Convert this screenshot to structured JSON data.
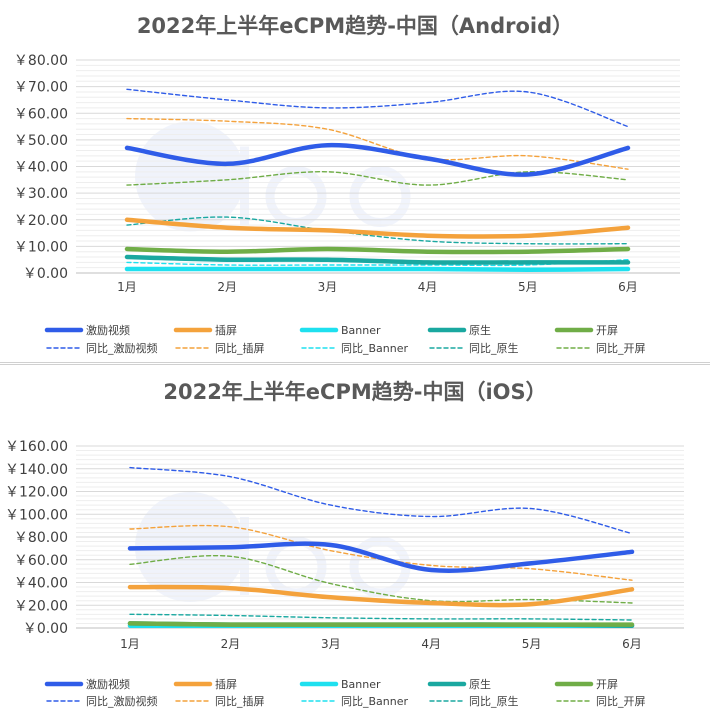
{
  "chart_data": [
    {
      "type": "line",
      "title": "2022年上半年eCPM趋势-中国（Android）",
      "categories": [
        "1月",
        "2月",
        "3月",
        "4月",
        "5月",
        "6月"
      ],
      "ylim": [
        0,
        80
      ],
      "yticks": [
        "￥0.00",
        "￥10.00",
        "￥20.00",
        "￥30.00",
        "￥40.00",
        "￥50.00",
        "￥60.00",
        "￥70.00",
        "￥80.00"
      ],
      "grid": true,
      "legend_position": "bottom",
      "series": [
        {
          "name": "激励视频",
          "color": "#2f5ce8",
          "style": "solid-thick",
          "values": [
            47,
            41,
            48,
            43,
            37,
            47
          ]
        },
        {
          "name": "插屏",
          "color": "#f4a23c",
          "style": "solid-thick",
          "values": [
            20,
            17,
            16,
            14,
            14,
            17
          ]
        },
        {
          "name": "Banner",
          "color": "#1ee0ef",
          "style": "solid-thick",
          "values": [
            1.5,
            1.5,
            1.5,
            1.5,
            1.2,
            1.5
          ]
        },
        {
          "name": "原生",
          "color": "#1aa8a0",
          "style": "solid-thick",
          "values": [
            6,
            5,
            5,
            4,
            4,
            4
          ]
        },
        {
          "name": "开屏",
          "color": "#70ad47",
          "style": "solid-thick",
          "values": [
            9,
            8,
            9,
            8,
            8,
            9
          ]
        },
        {
          "name": "同比_激励视频",
          "color": "#2f5ce8",
          "style": "dashed",
          "values": [
            69,
            65,
            62,
            64,
            68,
            55
          ]
        },
        {
          "name": "同比_插屏",
          "color": "#f4a23c",
          "style": "dashed",
          "values": [
            58,
            57,
            54,
            43,
            44,
            39
          ]
        },
        {
          "name": "同比_Banner",
          "color": "#1ee0ef",
          "style": "dashed",
          "values": [
            4,
            3,
            3,
            3,
            3,
            5
          ]
        },
        {
          "name": "同比_原生",
          "color": "#1aa8a0",
          "style": "dashed",
          "values": [
            18,
            21,
            16,
            12,
            11,
            11
          ]
        },
        {
          "name": "同比_开屏",
          "color": "#70ad47",
          "style": "dashed",
          "values": [
            33,
            35,
            38,
            33,
            38,
            35
          ]
        }
      ]
    },
    {
      "type": "line",
      "title": "2022年上半年eCPM趋势-中国（iOS）",
      "categories": [
        "1月",
        "2月",
        "3月",
        "4月",
        "5月",
        "6月"
      ],
      "ylim": [
        0,
        160
      ],
      "yticks": [
        "￥0.00",
        "￥20.00",
        "￥40.00",
        "￥60.00",
        "￥80.00",
        "￥100.00",
        "￥120.00",
        "￥140.00",
        "￥160.00"
      ],
      "grid": true,
      "legend_position": "bottom",
      "series": [
        {
          "name": "激励视频",
          "color": "#2f5ce8",
          "style": "solid-thick",
          "values": [
            70,
            71,
            73,
            51,
            57,
            67
          ]
        },
        {
          "name": "插屏",
          "color": "#f4a23c",
          "style": "solid-thick",
          "values": [
            36,
            35,
            27,
            22,
            21,
            34
          ]
        },
        {
          "name": "Banner",
          "color": "#1ee0ef",
          "style": "solid-thick",
          "values": [
            2,
            2,
            2,
            2,
            2,
            2
          ]
        },
        {
          "name": "原生",
          "color": "#1aa8a0",
          "style": "solid-thick",
          "values": [
            4,
            3,
            3,
            3,
            3,
            2
          ]
        },
        {
          "name": "开屏",
          "color": "#70ad47",
          "style": "solid-thick",
          "values": [
            4,
            3,
            3,
            3,
            3,
            3
          ]
        },
        {
          "name": "同比_激励视频",
          "color": "#2f5ce8",
          "style": "dashed",
          "values": [
            141,
            133,
            108,
            98,
            105,
            83
          ]
        },
        {
          "name": "同比_插屏",
          "color": "#f4a23c",
          "style": "dashed",
          "values": [
            87,
            89,
            68,
            55,
            52,
            42
          ]
        },
        {
          "name": "同比_Banner",
          "color": "#1ee0ef",
          "style": "dashed",
          "values": [
            3,
            3,
            3,
            3,
            3,
            3
          ]
        },
        {
          "name": "同比_原生",
          "color": "#1aa8a0",
          "style": "dashed",
          "values": [
            12,
            11,
            9,
            8,
            8,
            7
          ]
        },
        {
          "name": "同比_开屏",
          "color": "#70ad47",
          "style": "dashed",
          "values": [
            56,
            63,
            39,
            24,
            25,
            22
          ]
        }
      ]
    }
  ]
}
